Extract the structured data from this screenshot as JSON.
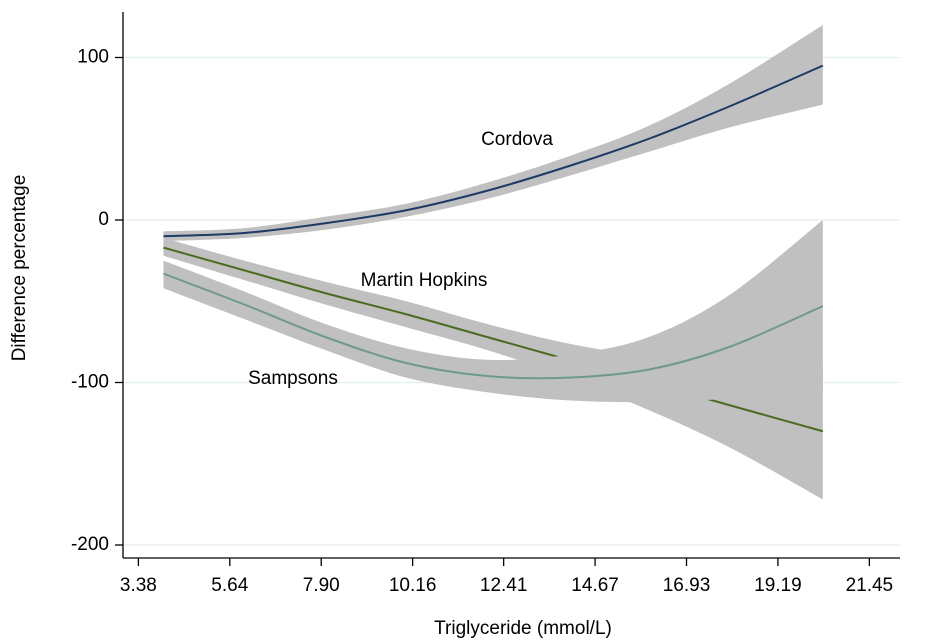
{
  "chart_data": {
    "type": "line",
    "x_label": "Triglyceride (mmol/L)",
    "y_label": "Difference percentage",
    "x": [
      4.0,
      6.0,
      8.0,
      10.0,
      12.0,
      14.0,
      16.0,
      18.0,
      20.3
    ],
    "series": [
      {
        "name": "Martin Hopkins",
        "color": "#4b6b1e",
        "band_color": "#c0c0c0",
        "values": [
          -17,
          -31,
          -45,
          -58,
          -72,
          -86,
          -100,
          -114,
          -130
        ],
        "lower": [
          -22,
          -37,
          -52,
          -66,
          -80,
          -97,
          -117,
          -140,
          -172
        ],
        "upper": [
          -11,
          -25,
          -38,
          -50,
          -64,
          -76,
          -84,
          -88,
          -88
        ]
      },
      {
        "name": "Sampsons",
        "color": "#6e9a8c",
        "band_color": "#c0c0c0",
        "values": [
          -33,
          -52,
          -72,
          -88,
          -96,
          -97,
          -92,
          -78,
          -53
        ],
        "lower": [
          -42,
          -61,
          -80,
          -97,
          -106,
          -111,
          -112,
          -110,
          -106
        ],
        "upper": [
          -25,
          -44,
          -64,
          -79,
          -86,
          -83,
          -72,
          -46,
          0
        ]
      },
      {
        "name": "Cordova",
        "color": "#1c3a66",
        "band_color": "#c0c0c0",
        "values": [
          -10,
          -8,
          -2,
          6,
          18,
          33,
          50,
          70,
          95
        ],
        "lower": [
          -13,
          -11,
          -6,
          2,
          13,
          27,
          42,
          57,
          71
        ],
        "upper": [
          -7,
          -5,
          2,
          10,
          23,
          39,
          58,
          84,
          120
        ]
      }
    ],
    "xlim": [
      3.0,
      22.9
    ],
    "ylim": [
      -208,
      128
    ],
    "xticks": [
      3.38,
      5.64,
      {
        "value": 7.9,
        "label": "7.90"
      },
      10.16,
      12.41,
      14.67,
      16.93,
      19.19,
      21.45
    ],
    "yticks": [
      -200,
      -100,
      0,
      100
    ],
    "grid": true
  }
}
